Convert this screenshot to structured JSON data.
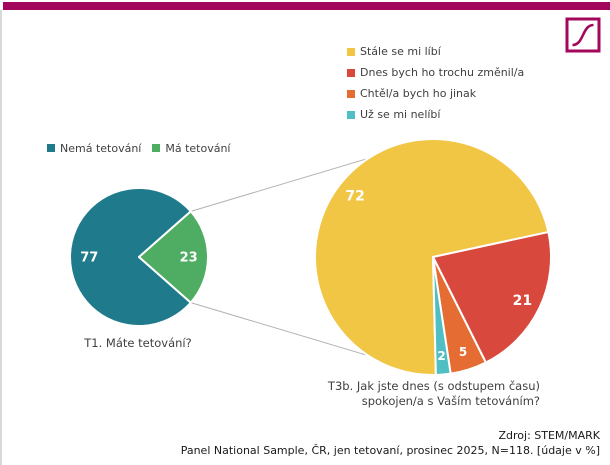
{
  "page": {
    "background": "#FFFFFF",
    "brand_color": "#A3075C",
    "edge_color": "#D9D9D9",
    "connector_color": "#B3B3B3"
  },
  "logo": {
    "icon": "stemmark-curve-logo"
  },
  "chart_data": [
    {
      "type": "pie",
      "title": "T1. Máte tetování?",
      "categories": [
        "Nemá tetování",
        "Má tetování"
      ],
      "values": [
        77,
        23
      ],
      "colors": [
        "#1F7B8C",
        "#4FAD63"
      ],
      "unit": "%",
      "legend_position": "above-left",
      "start_angle_deg": 131.4
    },
    {
      "type": "pie",
      "title": "T3b. Jak jste dnes (s odstupem času) spokojen/a s Vaším tetováním?",
      "title_lines": [
        "T3b. Jak jste dnes (s odstupem času)",
        "spokojen/a s Vaším tetováním?"
      ],
      "categories": [
        "Stále se mi líbí",
        "Dnes bych ho trochu změnil/a",
        "Chtěl/a bych ho jinak",
        "Už se mi nelíbí"
      ],
      "values": [
        72,
        21,
        5,
        2
      ],
      "colors": [
        "#F1C644",
        "#D8483D",
        "#E56D33",
        "#50BFC3"
      ],
      "unit": "%",
      "legend_position": "top-right",
      "start_angle_deg": 178.6
    }
  ],
  "source": {
    "line1": "Zdroj: STEM/MARK",
    "line2": "Panel National Sample, ČR, jen tetovaní, prosinec 2025, N=118. [údaje v %]"
  }
}
